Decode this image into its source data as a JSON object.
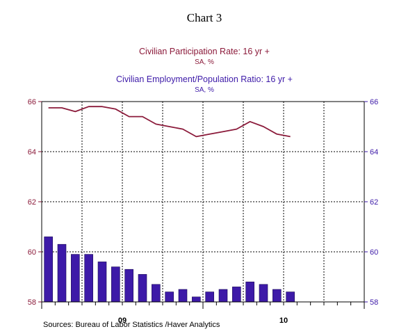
{
  "chart_data": {
    "type": "bar",
    "title": "Chart 3",
    "series": [
      {
        "name": "Civilian Participation Rate: 16 yr +",
        "units": "SA, %",
        "render": "line",
        "color": "#8b1a3a",
        "values": [
          65.75,
          65.75,
          65.6,
          65.8,
          65.8,
          65.7,
          65.4,
          65.4,
          65.1,
          65.0,
          64.9,
          64.6,
          64.7,
          64.8,
          64.9,
          65.2,
          65.0,
          64.7,
          64.6
        ]
      },
      {
        "name": "Civilian Employment/Population Ratio: 16 yr +",
        "units": "SA, %",
        "render": "bar",
        "color": "#3d1aa8",
        "values": [
          60.6,
          60.3,
          59.9,
          59.9,
          59.6,
          59.4,
          59.3,
          59.1,
          58.7,
          58.4,
          58.5,
          58.2,
          58.4,
          58.5,
          58.6,
          58.8,
          58.7,
          58.5,
          58.4
        ]
      }
    ],
    "ylim": [
      58,
      66
    ],
    "yticks": [
      58,
      60,
      62,
      64,
      66
    ],
    "y_tick_labels": [
      "58",
      "60",
      "62",
      "64",
      "66"
    ],
    "x_tick_labels": [
      {
        "label": "09",
        "month_index": 0
      },
      {
        "label": "10",
        "month_index": 12
      }
    ],
    "grid": true,
    "source": "Sources:  Bureau of Labor Statistics /Haver Analytics",
    "colors": {
      "left_axis": "#8b1a3a",
      "right_axis": "#3d1aa8",
      "grid": "#000000"
    }
  }
}
